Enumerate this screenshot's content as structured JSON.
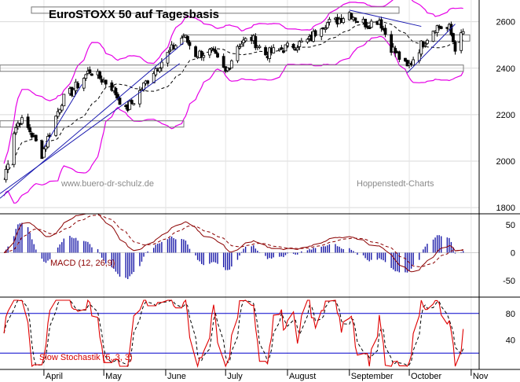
{
  "chart_data": [
    {
      "type": "line",
      "title": "EuroSTOXX 50 auf Tagesbasis",
      "y_ticks": [
        1800,
        2000,
        2200,
        2400,
        2600
      ],
      "ylim": [
        1780,
        2680
      ],
      "x_labels": [
        "April",
        "May",
        "June",
        "July",
        "August",
        "September",
        "October",
        "Nov"
      ],
      "watermarks": [
        "www.buero-dr-schulz.de",
        "Hoppenstedt-Charts"
      ],
      "price_anchors": [
        {
          "date": "Mar 12",
          "value": 1920
        },
        {
          "date": "Mar 17",
          "value": 2130
        },
        {
          "date": "Mar 20",
          "value": 2180
        },
        {
          "date": "Mar 25",
          "value": 2130
        },
        {
          "date": "Mar 31",
          "value": 2030
        },
        {
          "date": "Apr 10",
          "value": 2260
        },
        {
          "date": "Apr 15",
          "value": 2300
        },
        {
          "date": "Apr 24",
          "value": 2390
        },
        {
          "date": "May 5",
          "value": 2320
        },
        {
          "date": "May 12",
          "value": 2220
        },
        {
          "date": "May 16",
          "value": 2260
        },
        {
          "date": "May 26",
          "value": 2390
        },
        {
          "date": "Jun 3",
          "value": 2470
        },
        {
          "date": "Jun 10",
          "value": 2540
        },
        {
          "date": "Jun 16",
          "value": 2460
        },
        {
          "date": "Jun 24",
          "value": 2470
        },
        {
          "date": "Jul 1",
          "value": 2380
        },
        {
          "date": "Jul 7",
          "value": 2500
        },
        {
          "date": "Jul 14",
          "value": 2530
        },
        {
          "date": "Jul 21",
          "value": 2460
        },
        {
          "date": "Jul 28",
          "value": 2480
        },
        {
          "date": "Aug 5",
          "value": 2500
        },
        {
          "date": "Aug 12",
          "value": 2520
        },
        {
          "date": "Aug 18",
          "value": 2590
        },
        {
          "date": "Aug 25",
          "value": 2600
        },
        {
          "date": "Sep 1",
          "value": 2640
        },
        {
          "date": "Sep 5",
          "value": 2610
        },
        {
          "date": "Sep 10",
          "value": 2590
        },
        {
          "date": "Sep 16",
          "value": 2610
        },
        {
          "date": "Sep 22",
          "value": 2490
        },
        {
          "date": "Sep 30",
          "value": 2400
        },
        {
          "date": "Oct 7",
          "value": 2500
        },
        {
          "date": "Oct 14",
          "value": 2580
        },
        {
          "date": "Oct 21",
          "value": 2570
        },
        {
          "date": "Oct 24",
          "value": 2490
        },
        {
          "date": "Oct 28",
          "value": 2550
        }
      ],
      "resistance_lines": [
        2650,
        2530,
        2160,
        2400
      ]
    },
    {
      "type": "line",
      "label": "MACD (12, 26,9)",
      "y_ticks": [
        50,
        0,
        -50
      ],
      "ylim": [
        -80,
        70
      ],
      "series_colors": {
        "macd": "#8b0000",
        "signal": "#8b0000",
        "histogram": "#1a1aa8"
      }
    },
    {
      "type": "line",
      "label": "Slow Stochastik (5, 3, 3)",
      "y_ticks": [
        80,
        40
      ],
      "ylim": [
        0,
        100
      ],
      "levels": [
        80,
        20
      ],
      "series_colors": {
        "k": "#e00000",
        "d": "#000000",
        "levels": "#0000cc"
      }
    }
  ],
  "colors": {
    "bollinger": "#e600e6",
    "trendline": "#1a1ab0",
    "candle": "#000000",
    "ma": "#000000"
  }
}
